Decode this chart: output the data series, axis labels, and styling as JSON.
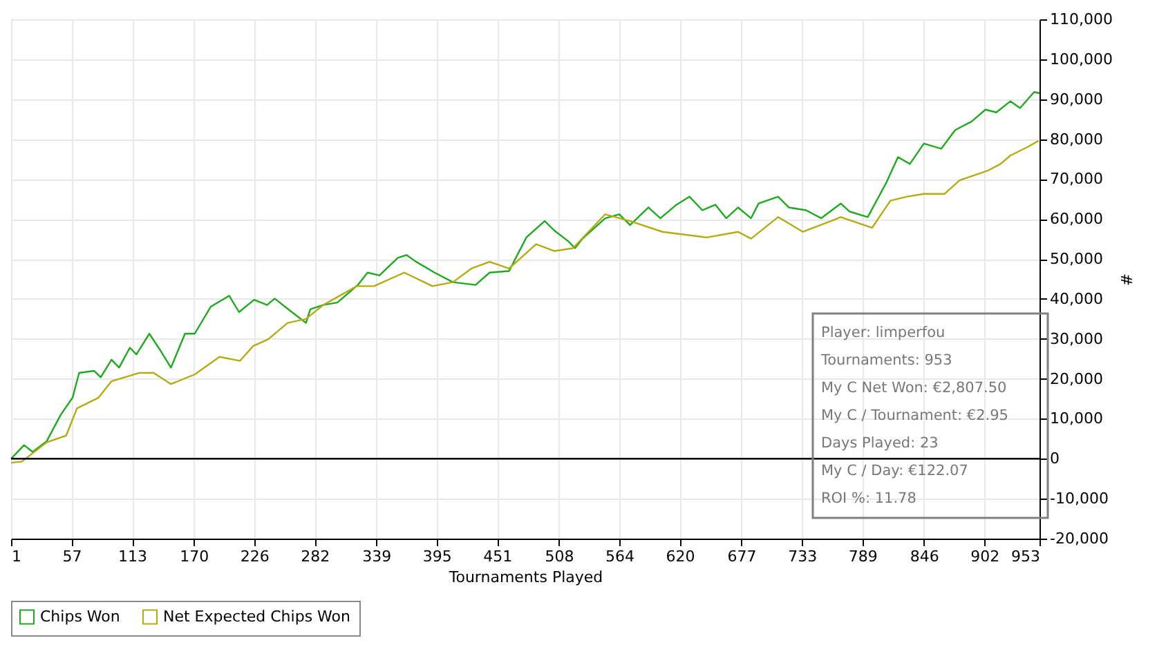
{
  "chart_data": {
    "type": "line",
    "xlabel": "Tournaments Played",
    "ylabel": "#",
    "xlim": [
      1,
      953
    ],
    "xticks": [
      1,
      57,
      113,
      170,
      226,
      282,
      339,
      395,
      451,
      508,
      564,
      620,
      677,
      733,
      789,
      846,
      902,
      953
    ],
    "ylim": [
      -20000,
      110000
    ],
    "yticks": [
      {
        "value": -20000,
        "label": "-20,000"
      },
      {
        "value": -10000,
        "label": "-10,000"
      },
      0,
      {
        "value": 10000,
        "label": "10,000"
      },
      {
        "value": 20000,
        "label": "20,000"
      },
      {
        "value": 30000,
        "label": "30,000"
      },
      {
        "value": 40000,
        "label": "40,000"
      },
      {
        "value": 50000,
        "label": "50,000"
      },
      {
        "value": 60000,
        "label": "60,000"
      },
      {
        "value": 70000,
        "label": "70,000"
      },
      {
        "value": 80000,
        "label": "80,000"
      },
      {
        "value": 90000,
        "label": "90,000"
      },
      {
        "value": 100000,
        "label": "100,000"
      },
      {
        "value": 110000,
        "label": "110,000"
      }
    ],
    "grid": true,
    "legend": "bottom left",
    "marker": "none",
    "line_style": "solid",
    "ref_lines": [
      {
        "axis": "y",
        "value": 0,
        "color": "#000000"
      }
    ],
    "annotations": [
      "Player: limperfou",
      "Tournaments: 953",
      "My C Net Won: €2,807.50",
      "My C / Tournament: €2.95",
      "Days Played: 23",
      "My C / Day: €122.07",
      "ROI %: 11.78"
    ],
    "series": [
      {
        "name": "Chips Won",
        "color": "#1fa91f",
        "x": [
          1,
          13,
          21,
          34,
          47,
          58,
          64,
          78,
          84,
          94,
          101,
          111,
          117,
          129,
          139,
          149,
          162,
          171,
          186,
          203,
          212,
          226,
          238,
          245,
          261,
          274,
          278,
          290,
          303,
          322,
          331,
          342,
          359,
          367,
          376,
          393,
          410,
          431,
          444,
          462,
          478,
          495,
          504,
          517,
          523,
          530,
          551,
          564,
          574,
          591,
          602,
          617,
          629,
          641,
          653,
          663,
          674,
          686,
          693,
          711,
          721,
          737,
          751,
          769,
          777,
          794,
          811,
          822,
          833,
          846,
          862,
          875,
          890,
          903,
          913,
          926,
          935,
          948,
          953
        ],
        "values": [
          0,
          3400,
          1700,
          4400,
          11000,
          15300,
          21500,
          22000,
          20400,
          24800,
          22800,
          27800,
          26100,
          31300,
          27200,
          22800,
          31300,
          31300,
          38100,
          40800,
          36700,
          39800,
          38500,
          40100,
          36700,
          34000,
          37400,
          38500,
          39100,
          43500,
          46600,
          45900,
          50300,
          51000,
          49300,
          46600,
          44200,
          43500,
          46600,
          47000,
          55400,
          59500,
          57100,
          54400,
          52700,
          55100,
          60200,
          61200,
          58500,
          62900,
          60200,
          63600,
          65600,
          62200,
          63600,
          60200,
          62900,
          60200,
          63900,
          65600,
          62900,
          62200,
          60200,
          63900,
          61900,
          60500,
          69000,
          75500,
          73800,
          78900,
          77600,
          82300,
          84400,
          87400,
          86700,
          89500,
          87800,
          91800,
          91500
        ]
      },
      {
        "name": "Net Expected Chips Won",
        "color": "#b4aa12",
        "x": [
          1,
          11,
          34,
          52,
          62,
          82,
          94,
          120,
          133,
          149,
          171,
          194,
          213,
          225,
          239,
          257,
          274,
          290,
          321,
          337,
          365,
          391,
          410,
          427,
          444,
          462,
          487,
          504,
          521,
          551,
          574,
          604,
          645,
          674,
          686,
          711,
          734,
          760,
          769,
          798,
          815,
          830,
          846,
          865,
          879,
          905,
          917,
          926,
          943,
          952
        ],
        "values": [
          -1000,
          -700,
          4100,
          5800,
          12600,
          15300,
          19400,
          21500,
          21500,
          18700,
          21100,
          25500,
          24500,
          28200,
          29900,
          34000,
          35000,
          38500,
          43200,
          43200,
          46600,
          43200,
          44200,
          47600,
          49300,
          47600,
          53700,
          52000,
          52700,
          61200,
          59500,
          56800,
          55400,
          56800,
          55100,
          60500,
          56800,
          59500,
          60500,
          57800,
          64600,
          65600,
          66300,
          66300,
          69700,
          72100,
          73800,
          75900,
          78200,
          79600
        ]
      }
    ]
  }
}
